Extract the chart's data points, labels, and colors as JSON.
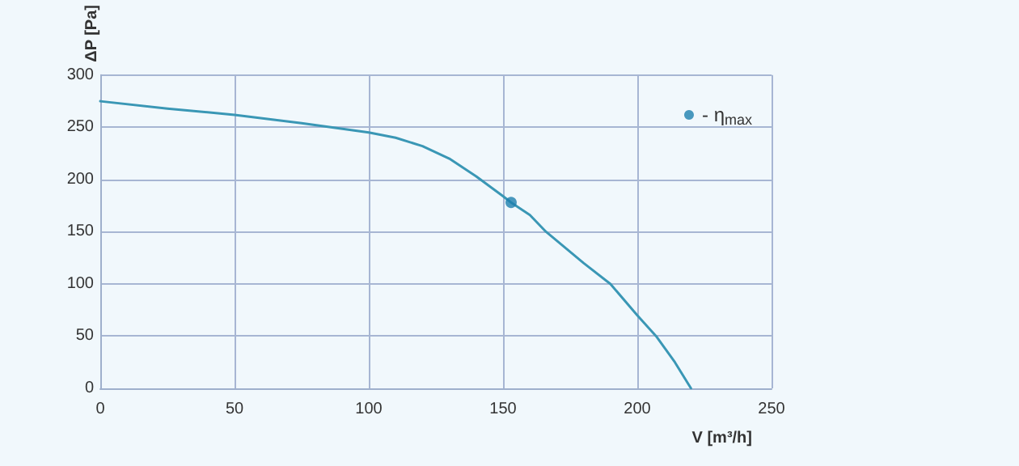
{
  "chart_data": {
    "type": "line",
    "xlabel": "V [m³/h]",
    "ylabel": "ΔP [Pa]",
    "xlim": [
      0,
      250
    ],
    "xticks": [
      0,
      50,
      100,
      150,
      200,
      250
    ],
    "ylim": [
      0,
      300
    ],
    "yticks": [
      0,
      50,
      100,
      150,
      200,
      250,
      300
    ],
    "grid": true,
    "legend": "top right",
    "marker": "none",
    "series": [
      {
        "color": "#3a97b5",
        "x": [
          0,
          25,
          50,
          75,
          100,
          110,
          120,
          130,
          140,
          150,
          153,
          160,
          166,
          180,
          190,
          200,
          207,
          214,
          220
        ],
        "values": [
          275,
          268,
          262,
          254,
          245,
          240,
          232,
          220,
          203,
          184,
          178,
          166,
          150,
          120,
          100,
          70,
          50,
          25,
          0
        ]
      },
      {
        "type": "scatter",
        "name": "- η$_{max}$",
        "color": "#1e7fae",
        "marker": "circle",
        "x": [
          153
        ],
        "values": [
          178
        ]
      }
    ]
  }
}
